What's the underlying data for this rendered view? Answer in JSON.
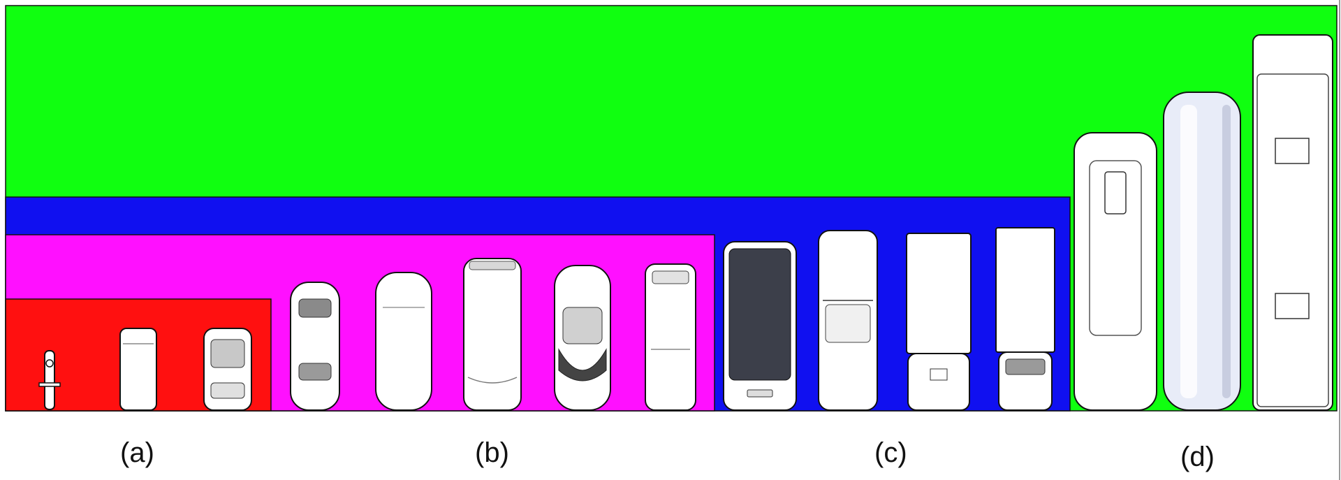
{
  "colors": {
    "group_a": "#ff1010",
    "group_b": "#ff10ff",
    "group_c": "#1010f0",
    "group_d": "#10ff10",
    "vehicle_body": "#ffffff",
    "outline": "#111111"
  },
  "groups": [
    {
      "id": "a",
      "label": "(a)",
      "vehicles": [
        "motorcycle",
        "small-van",
        "compact-car"
      ]
    },
    {
      "id": "b",
      "label": "(b)",
      "vehicles": [
        "sedan",
        "hatchback",
        "minivan",
        "convertible",
        "pickup"
      ]
    },
    {
      "id": "c",
      "label": "(c)",
      "vehicles": [
        "suv-dark-roof",
        "pickup-truck",
        "box-truck",
        "light-truck"
      ]
    },
    {
      "id": "d",
      "label": "(d)",
      "vehicles": [
        "bus",
        "tanker-trailer",
        "long-trailer"
      ]
    }
  ]
}
